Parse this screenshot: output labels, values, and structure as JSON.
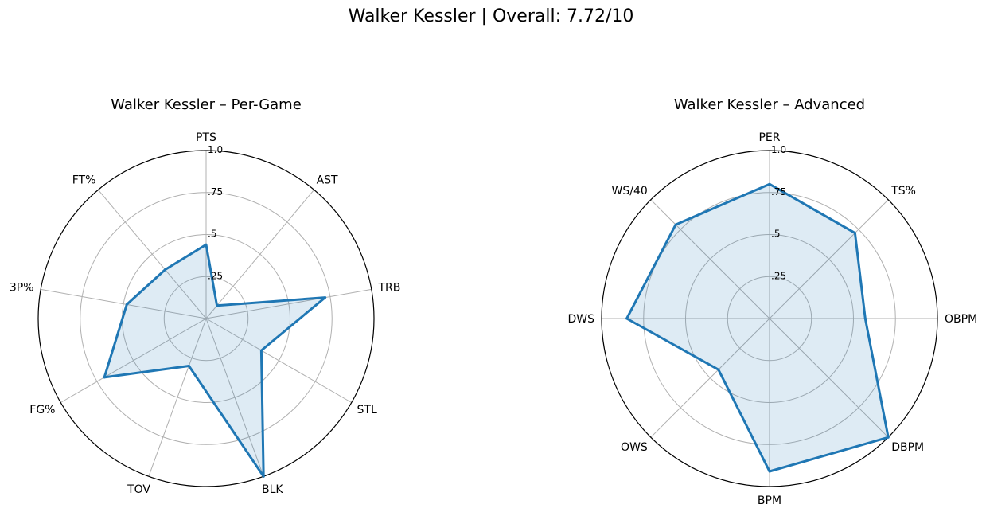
{
  "suptitle": "Walker Kessler | Overall: 7.72/10",
  "chart_data": [
    {
      "type": "radar",
      "title": "Walker Kessler – Per-Game",
      "categories": [
        "PTS",
        "AST",
        "TRB",
        "STL",
        "BLK",
        "TOV",
        "FG%",
        "3P%",
        "FT%"
      ],
      "values": [
        0.44,
        0.1,
        0.72,
        0.38,
        1.0,
        0.3,
        0.7,
        0.48,
        0.38
      ],
      "rlim": [
        0,
        1.0
      ],
      "rticks": [
        0.25,
        0.5,
        0.75,
        1.0
      ],
      "rtick_labels": [
        ".25",
        ".5",
        ".75",
        "1.0"
      ],
      "grid": true,
      "color": "#1f77b4"
    },
    {
      "type": "radar",
      "title": "Walker Kessler – Advanced",
      "categories": [
        "PER",
        "TS%",
        "OBPM",
        "DBPM",
        "BPM",
        "OWS",
        "DWS",
        "WS/40"
      ],
      "values": [
        0.8,
        0.72,
        0.57,
        1.0,
        0.91,
        0.43,
        0.85,
        0.79
      ],
      "rlim": [
        0,
        1.0
      ],
      "rticks": [
        0.25,
        0.5,
        0.75,
        1.0
      ],
      "rtick_labels": [
        ".25",
        ".5",
        ".75",
        "1.0"
      ],
      "grid": true,
      "color": "#1f77b4"
    }
  ]
}
